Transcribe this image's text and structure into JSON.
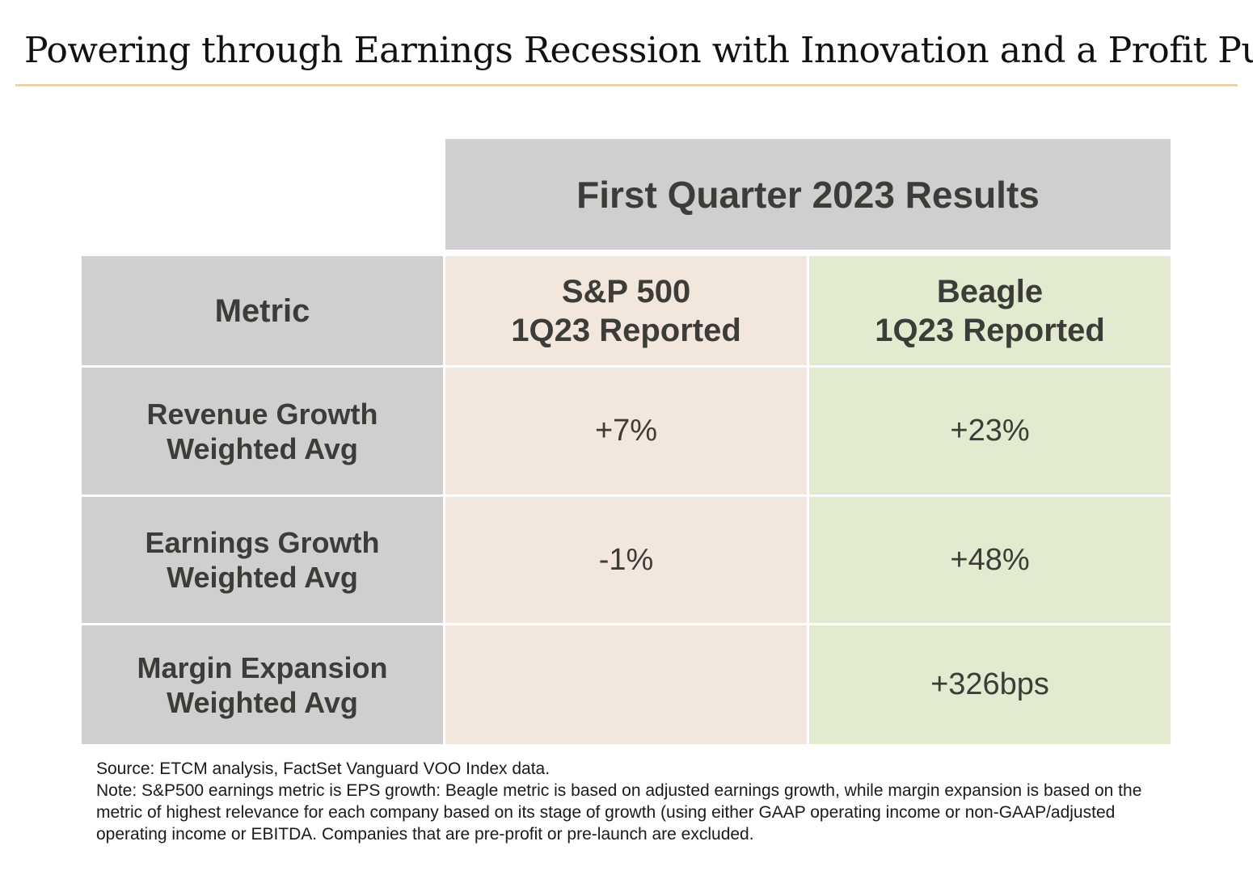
{
  "title": "Powering through Earnings Recession with Innovation and a Profit Push",
  "colors": {
    "title_rule": "#e9d3ae",
    "header_gray": "#d0cecf",
    "sp500_column": "#f3e6dd",
    "beagle_column": "#e2eacf",
    "text": "#3c3d38"
  },
  "table": {
    "group_header": "First Quarter 2023 Results",
    "columns": {
      "metric": "Metric",
      "sp500": [
        "S&P 500",
        "1Q23 Reported"
      ],
      "beagle": [
        "Beagle",
        "1Q23 Reported"
      ]
    },
    "rows": [
      {
        "metric": [
          "Revenue Growth",
          "Weighted Avg"
        ],
        "sp500": "+7%",
        "beagle": "+23%"
      },
      {
        "metric": [
          "Earnings Growth",
          "Weighted Avg"
        ],
        "sp500": "-1%",
        "beagle": "+48%"
      },
      {
        "metric": [
          "Margin Expansion",
          "Weighted Avg"
        ],
        "sp500": "",
        "beagle": "+326bps"
      }
    ]
  },
  "footnote": {
    "source": "Source: ETCM analysis, FactSet Vanguard VOO Index data.",
    "note": "Note: S&P500 earnings metric is EPS growth: Beagle metric is based on adjusted earnings growth, while margin expansion is based on the metric of highest relevance for each company based on its stage of growth (using either GAAP operating income or non-GAAP/adjusted operating income or EBITDA. Companies that are pre-profit or pre-launch are excluded."
  }
}
